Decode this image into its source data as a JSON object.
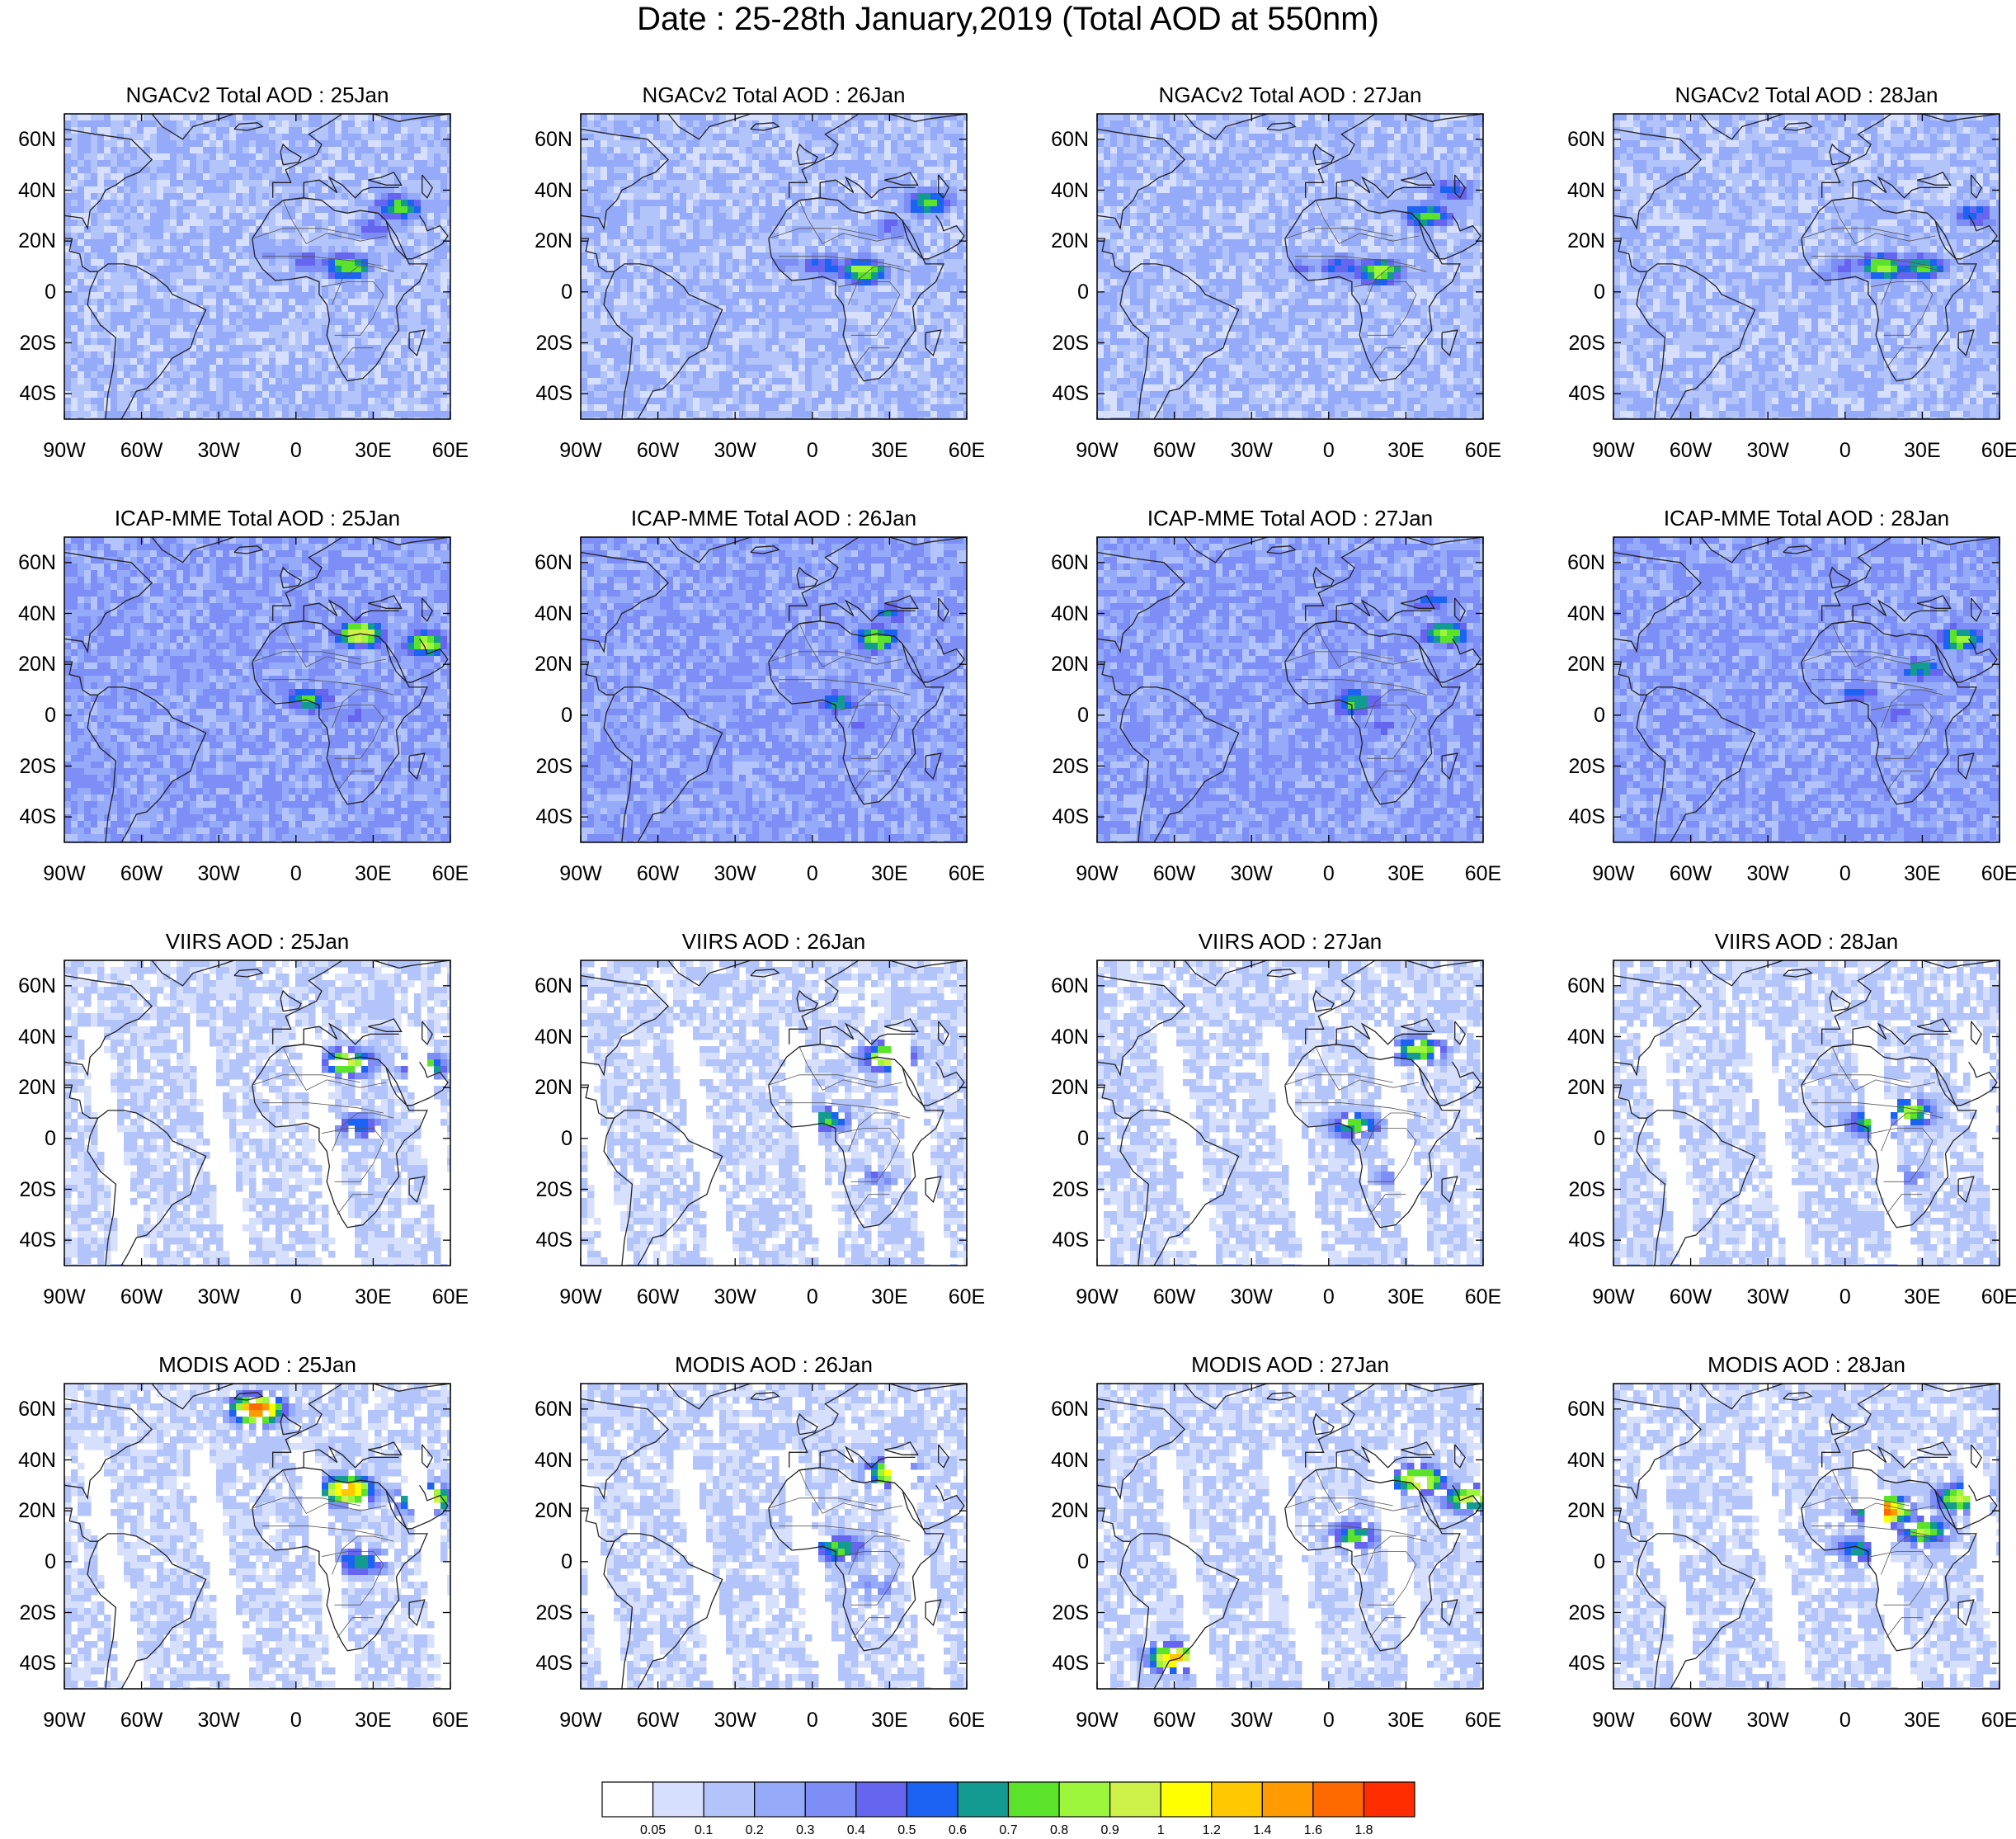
{
  "title": "Date : 25-28th January,2019 (Total AOD at 550nm)",
  "rows": [
    {
      "name": "NGACv2",
      "panels": [
        {
          "title": "NGACv2 Total AOD : 25Jan",
          "base_level": 2,
          "plumes": [
            {
              "lon": 20,
              "lat": 10,
              "level": 9
            },
            {
              "lon": 40,
              "lat": 33,
              "level": 8
            },
            {
              "lon": 5,
              "lat": 12,
              "level": 5
            },
            {
              "lon": -10,
              "lat": 15,
              "level": 4
            },
            {
              "lon": 30,
              "lat": 25,
              "level": 5
            }
          ]
        },
        {
          "title": "NGACv2 Total AOD : 26Jan",
          "base_level": 2,
          "plumes": [
            {
              "lon": 20,
              "lat": 8,
              "level": 9
            },
            {
              "lon": 45,
              "lat": 35,
              "level": 8
            },
            {
              "lon": 5,
              "lat": 10,
              "level": 6
            },
            {
              "lon": -10,
              "lat": 12,
              "level": 4
            },
            {
              "lon": 30,
              "lat": 25,
              "level": 5
            }
          ]
        },
        {
          "title": "NGACv2 Total AOD : 27Jan",
          "base_level": 2,
          "plumes": [
            {
              "lon": 20,
              "lat": 8,
              "level": 9
            },
            {
              "lon": 38,
              "lat": 30,
              "level": 8
            },
            {
              "lon": 48,
              "lat": 40,
              "level": 6
            },
            {
              "lon": 5,
              "lat": 10,
              "level": 6
            },
            {
              "lon": -10,
              "lat": 10,
              "level": 4
            }
          ]
        },
        {
          "title": "NGACv2 Total AOD : 28Jan",
          "base_level": 2,
          "plumes": [
            {
              "lon": 15,
              "lat": 10,
              "level": 9
            },
            {
              "lon": 30,
              "lat": 10,
              "level": 8
            },
            {
              "lon": 50,
              "lat": 30,
              "level": 6
            },
            {
              "lon": 0,
              "lat": 10,
              "level": 5
            },
            {
              "lon": -10,
              "lat": 5,
              "level": 4
            }
          ]
        }
      ]
    },
    {
      "name": "ICAP-MME",
      "panels": [
        {
          "title": "ICAP-MME Total AOD : 25Jan",
          "base_level": 3,
          "plumes": [
            {
              "lon": 25,
              "lat": 32,
              "level": 11
            },
            {
              "lon": 50,
              "lat": 28,
              "level": 9
            },
            {
              "lon": 5,
              "lat": 6,
              "level": 8
            },
            {
              "lon": 25,
              "lat": 0,
              "level": 5
            },
            {
              "lon": -20,
              "lat": 25,
              "level": 4
            }
          ]
        },
        {
          "title": "ICAP-MME Total AOD : 26Jan",
          "base_level": 3,
          "plumes": [
            {
              "lon": 25,
              "lat": 30,
              "level": 9
            },
            {
              "lon": 30,
              "lat": 40,
              "level": 6
            },
            {
              "lon": 10,
              "lat": 5,
              "level": 7
            },
            {
              "lon": 20,
              "lat": -5,
              "level": 5
            }
          ]
        },
        {
          "title": "ICAP-MME Total AOD : 27Jan",
          "base_level": 3,
          "plumes": [
            {
              "lon": 45,
              "lat": 32,
              "level": 9
            },
            {
              "lon": 40,
              "lat": 45,
              "level": 6
            },
            {
              "lon": 10,
              "lat": 5,
              "level": 8
            },
            {
              "lon": 20,
              "lat": -5,
              "level": 5
            }
          ]
        },
        {
          "title": "ICAP-MME Total AOD : 28Jan",
          "base_level": 3,
          "plumes": [
            {
              "lon": 45,
              "lat": 30,
              "level": 9
            },
            {
              "lon": 30,
              "lat": 18,
              "level": 7
            },
            {
              "lon": 5,
              "lat": 8,
              "level": 6
            },
            {
              "lon": 20,
              "lat": 0,
              "level": 5
            }
          ]
        }
      ]
    },
    {
      "name": "VIIRS",
      "panels": [
        {
          "title": "VIIRS AOD : 25Jan",
          "base_level": 1,
          "plumes": [
            {
              "lon": 20,
              "lat": 30,
              "level": 10
            },
            {
              "lon": 50,
              "lat": 28,
              "level": 8
            },
            {
              "lon": 25,
              "lat": 5,
              "level": 6
            }
          ]
        },
        {
          "title": "VIIRS AOD : 26Jan",
          "base_level": 1,
          "plumes": [
            {
              "lon": 30,
              "lat": 32,
              "level": 11
            },
            {
              "lon": 5,
              "lat": 7,
              "level": 7
            },
            {
              "lon": 25,
              "lat": -15,
              "level": 4
            }
          ]
        },
        {
          "title": "VIIRS AOD : 27Jan",
          "base_level": 1,
          "plumes": [
            {
              "lon": 35,
              "lat": 35,
              "level": 9
            },
            {
              "lon": 10,
              "lat": 5,
              "level": 8
            },
            {
              "lon": 25,
              "lat": -15,
              "level": 4
            }
          ]
        },
        {
          "title": "VIIRS AOD : 28Jan",
          "base_level": 1,
          "plumes": [
            {
              "lon": 25,
              "lat": 10,
              "level": 9
            },
            {
              "lon": 10,
              "lat": 6,
              "level": 8
            },
            {
              "lon": 25,
              "lat": -15,
              "level": 4
            }
          ]
        }
      ]
    },
    {
      "name": "MODIS",
      "panels": [
        {
          "title": "MODIS AOD : 25Jan",
          "base_level": 1,
          "plumes": [
            {
              "lon": 20,
              "lat": 28,
              "level": 13
            },
            {
              "lon": 50,
              "lat": 25,
              "level": 12
            },
            {
              "lon": -15,
              "lat": 60,
              "level": 14
            },
            {
              "lon": 25,
              "lat": 0,
              "level": 7
            }
          ]
        },
        {
          "title": "MODIS AOD : 26Jan",
          "base_level": 1,
          "plumes": [
            {
              "lon": 30,
              "lat": 35,
              "level": 10
            },
            {
              "lon": 10,
              "lat": 5,
              "level": 8
            },
            {
              "lon": 25,
              "lat": -10,
              "level": 4
            }
          ]
        },
        {
          "title": "MODIS AOD : 27Jan",
          "base_level": 1,
          "plumes": [
            {
              "lon": 35,
              "lat": 32,
              "level": 11
            },
            {
              "lon": 10,
              "lat": 10,
              "level": 8
            },
            {
              "lon": 55,
              "lat": 25,
              "level": 10
            },
            {
              "lon": -60,
              "lat": -38,
              "level": 12
            }
          ]
        },
        {
          "title": "MODIS AOD : 28Jan",
          "base_level": 1,
          "plumes": [
            {
              "lon": 15,
              "lat": 20,
              "level": 14
            },
            {
              "lon": 45,
              "lat": 25,
              "level": 10
            },
            {
              "lon": 30,
              "lat": 12,
              "level": 9
            },
            {
              "lon": 5,
              "lat": 5,
              "level": 7
            }
          ]
        }
      ]
    }
  ],
  "lat_ticks": [
    "60N",
    "40N",
    "20N",
    "0",
    "20S",
    "40S"
  ],
  "lat_values": [
    60,
    40,
    20,
    0,
    -20,
    -40
  ],
  "lon_ticks": [
    "90W",
    "60W",
    "30W",
    "0",
    "30E",
    "60E"
  ],
  "lon_values": [
    -90,
    -60,
    -30,
    0,
    30,
    60
  ],
  "lon_range": [
    -90,
    60
  ],
  "lat_range": [
    -50,
    70
  ],
  "colorbar": {
    "colors": [
      "#ffffff",
      "#d6e0fd",
      "#b3c4fb",
      "#95aaf9",
      "#7d8ef6",
      "#6565ef",
      "#1d63f3",
      "#139b92",
      "#5be32c",
      "#9ef63c",
      "#cef248",
      "#ffff00",
      "#ffc800",
      "#ff9a00",
      "#ff6a00",
      "#ff2d00"
    ],
    "labels": [
      "0.05",
      "0.1",
      "0.2",
      "0.3",
      "0.4",
      "0.5",
      "0.6",
      "0.7",
      "0.8",
      "0.9",
      "1",
      "1.2",
      "1.4",
      "1.6",
      "1.8"
    ]
  }
}
